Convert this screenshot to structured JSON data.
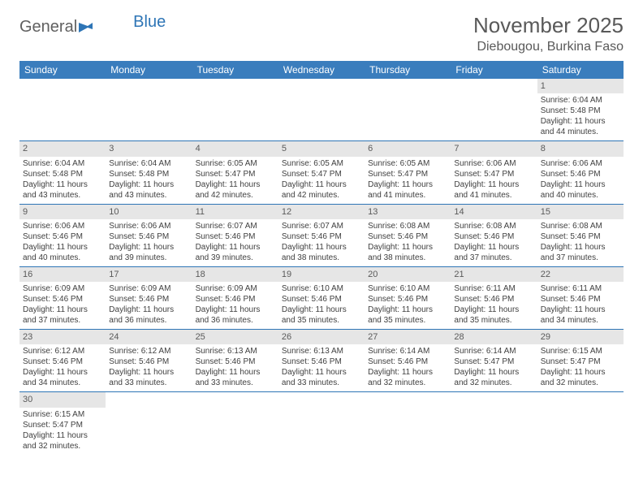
{
  "logo": {
    "text1": "General",
    "text2": "Blue"
  },
  "title": "November 2025",
  "location": "Diebougou, Burkina Faso",
  "colors": {
    "header_bg": "#3a7dbd",
    "header_text": "#ffffff",
    "daynum_bg": "#e6e6e6",
    "week_border": "#2e75b6",
    "title_color": "#595959",
    "body_text": "#404040",
    "logo_gray": "#606060",
    "logo_blue": "#2e75b6"
  },
  "day_names": [
    "Sunday",
    "Monday",
    "Tuesday",
    "Wednesday",
    "Thursday",
    "Friday",
    "Saturday"
  ],
  "weeks": [
    [
      null,
      null,
      null,
      null,
      null,
      null,
      {
        "n": "1",
        "sunrise": "Sunrise: 6:04 AM",
        "sunset": "Sunset: 5:48 PM",
        "day1": "Daylight: 11 hours",
        "day2": "and 44 minutes."
      }
    ],
    [
      {
        "n": "2",
        "sunrise": "Sunrise: 6:04 AM",
        "sunset": "Sunset: 5:48 PM",
        "day1": "Daylight: 11 hours",
        "day2": "and 43 minutes."
      },
      {
        "n": "3",
        "sunrise": "Sunrise: 6:04 AM",
        "sunset": "Sunset: 5:48 PM",
        "day1": "Daylight: 11 hours",
        "day2": "and 43 minutes."
      },
      {
        "n": "4",
        "sunrise": "Sunrise: 6:05 AM",
        "sunset": "Sunset: 5:47 PM",
        "day1": "Daylight: 11 hours",
        "day2": "and 42 minutes."
      },
      {
        "n": "5",
        "sunrise": "Sunrise: 6:05 AM",
        "sunset": "Sunset: 5:47 PM",
        "day1": "Daylight: 11 hours",
        "day2": "and 42 minutes."
      },
      {
        "n": "6",
        "sunrise": "Sunrise: 6:05 AM",
        "sunset": "Sunset: 5:47 PM",
        "day1": "Daylight: 11 hours",
        "day2": "and 41 minutes."
      },
      {
        "n": "7",
        "sunrise": "Sunrise: 6:06 AM",
        "sunset": "Sunset: 5:47 PM",
        "day1": "Daylight: 11 hours",
        "day2": "and 41 minutes."
      },
      {
        "n": "8",
        "sunrise": "Sunrise: 6:06 AM",
        "sunset": "Sunset: 5:46 PM",
        "day1": "Daylight: 11 hours",
        "day2": "and 40 minutes."
      }
    ],
    [
      {
        "n": "9",
        "sunrise": "Sunrise: 6:06 AM",
        "sunset": "Sunset: 5:46 PM",
        "day1": "Daylight: 11 hours",
        "day2": "and 40 minutes."
      },
      {
        "n": "10",
        "sunrise": "Sunrise: 6:06 AM",
        "sunset": "Sunset: 5:46 PM",
        "day1": "Daylight: 11 hours",
        "day2": "and 39 minutes."
      },
      {
        "n": "11",
        "sunrise": "Sunrise: 6:07 AM",
        "sunset": "Sunset: 5:46 PM",
        "day1": "Daylight: 11 hours",
        "day2": "and 39 minutes."
      },
      {
        "n": "12",
        "sunrise": "Sunrise: 6:07 AM",
        "sunset": "Sunset: 5:46 PM",
        "day1": "Daylight: 11 hours",
        "day2": "and 38 minutes."
      },
      {
        "n": "13",
        "sunrise": "Sunrise: 6:08 AM",
        "sunset": "Sunset: 5:46 PM",
        "day1": "Daylight: 11 hours",
        "day2": "and 38 minutes."
      },
      {
        "n": "14",
        "sunrise": "Sunrise: 6:08 AM",
        "sunset": "Sunset: 5:46 PM",
        "day1": "Daylight: 11 hours",
        "day2": "and 37 minutes."
      },
      {
        "n": "15",
        "sunrise": "Sunrise: 6:08 AM",
        "sunset": "Sunset: 5:46 PM",
        "day1": "Daylight: 11 hours",
        "day2": "and 37 minutes."
      }
    ],
    [
      {
        "n": "16",
        "sunrise": "Sunrise: 6:09 AM",
        "sunset": "Sunset: 5:46 PM",
        "day1": "Daylight: 11 hours",
        "day2": "and 37 minutes."
      },
      {
        "n": "17",
        "sunrise": "Sunrise: 6:09 AM",
        "sunset": "Sunset: 5:46 PM",
        "day1": "Daylight: 11 hours",
        "day2": "and 36 minutes."
      },
      {
        "n": "18",
        "sunrise": "Sunrise: 6:09 AM",
        "sunset": "Sunset: 5:46 PM",
        "day1": "Daylight: 11 hours",
        "day2": "and 36 minutes."
      },
      {
        "n": "19",
        "sunrise": "Sunrise: 6:10 AM",
        "sunset": "Sunset: 5:46 PM",
        "day1": "Daylight: 11 hours",
        "day2": "and 35 minutes."
      },
      {
        "n": "20",
        "sunrise": "Sunrise: 6:10 AM",
        "sunset": "Sunset: 5:46 PM",
        "day1": "Daylight: 11 hours",
        "day2": "and 35 minutes."
      },
      {
        "n": "21",
        "sunrise": "Sunrise: 6:11 AM",
        "sunset": "Sunset: 5:46 PM",
        "day1": "Daylight: 11 hours",
        "day2": "and 35 minutes."
      },
      {
        "n": "22",
        "sunrise": "Sunrise: 6:11 AM",
        "sunset": "Sunset: 5:46 PM",
        "day1": "Daylight: 11 hours",
        "day2": "and 34 minutes."
      }
    ],
    [
      {
        "n": "23",
        "sunrise": "Sunrise: 6:12 AM",
        "sunset": "Sunset: 5:46 PM",
        "day1": "Daylight: 11 hours",
        "day2": "and 34 minutes."
      },
      {
        "n": "24",
        "sunrise": "Sunrise: 6:12 AM",
        "sunset": "Sunset: 5:46 PM",
        "day1": "Daylight: 11 hours",
        "day2": "and 33 minutes."
      },
      {
        "n": "25",
        "sunrise": "Sunrise: 6:13 AM",
        "sunset": "Sunset: 5:46 PM",
        "day1": "Daylight: 11 hours",
        "day2": "and 33 minutes."
      },
      {
        "n": "26",
        "sunrise": "Sunrise: 6:13 AM",
        "sunset": "Sunset: 5:46 PM",
        "day1": "Daylight: 11 hours",
        "day2": "and 33 minutes."
      },
      {
        "n": "27",
        "sunrise": "Sunrise: 6:14 AM",
        "sunset": "Sunset: 5:46 PM",
        "day1": "Daylight: 11 hours",
        "day2": "and 32 minutes."
      },
      {
        "n": "28",
        "sunrise": "Sunrise: 6:14 AM",
        "sunset": "Sunset: 5:47 PM",
        "day1": "Daylight: 11 hours",
        "day2": "and 32 minutes."
      },
      {
        "n": "29",
        "sunrise": "Sunrise: 6:15 AM",
        "sunset": "Sunset: 5:47 PM",
        "day1": "Daylight: 11 hours",
        "day2": "and 32 minutes."
      }
    ],
    [
      {
        "n": "30",
        "sunrise": "Sunrise: 6:15 AM",
        "sunset": "Sunset: 5:47 PM",
        "day1": "Daylight: 11 hours",
        "day2": "and 32 minutes."
      },
      null,
      null,
      null,
      null,
      null,
      null
    ]
  ]
}
